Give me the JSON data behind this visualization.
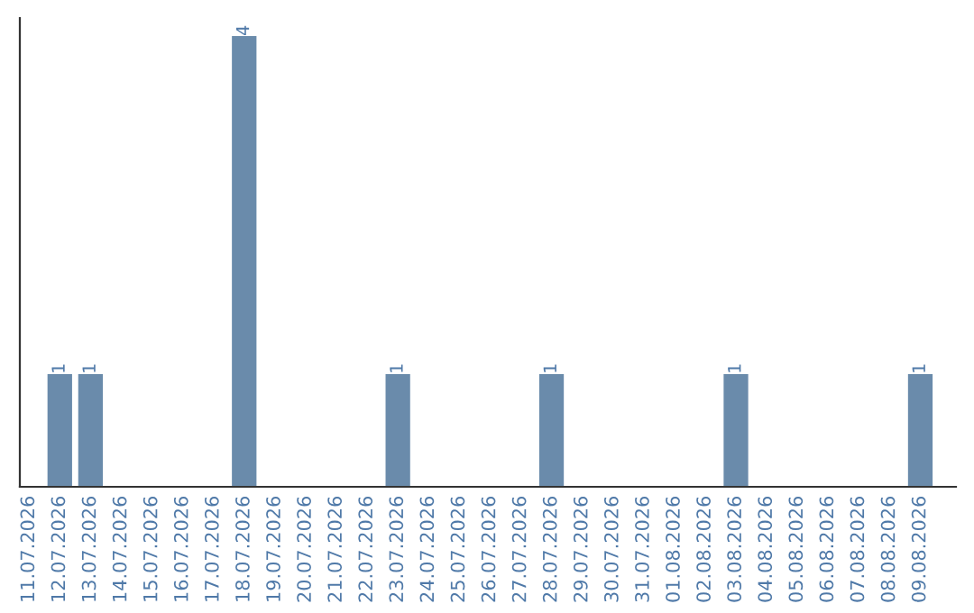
{
  "chart_data": {
    "type": "bar",
    "categories": [
      "11.07.2026",
      "12.07.2026",
      "13.07.2026",
      "14.07.2026",
      "15.07.2026",
      "16.07.2026",
      "17.07.2026",
      "18.07.2026",
      "19.07.2026",
      "20.07.2026",
      "21.07.2026",
      "22.07.2026",
      "23.07.2026",
      "24.07.2026",
      "25.07.2026",
      "26.07.2026",
      "27.07.2026",
      "28.07.2026",
      "29.07.2026",
      "30.07.2026",
      "31.07.2026",
      "01.08.2026",
      "02.08.2026",
      "03.08.2026",
      "04.08.2026",
      "05.08.2026",
      "06.08.2026",
      "07.08.2026",
      "08.08.2026",
      "09.08.2026"
    ],
    "values": [
      0,
      1,
      1,
      0,
      0,
      0,
      0,
      4,
      0,
      0,
      0,
      0,
      1,
      0,
      0,
      0,
      0,
      1,
      0,
      0,
      0,
      0,
      0,
      1,
      0,
      0,
      0,
      0,
      0,
      1
    ],
    "color": "#6a8bab",
    "value_labels": [
      null,
      "1",
      "1",
      null,
      null,
      null,
      null,
      "4",
      null,
      null,
      null,
      null,
      "1",
      null,
      null,
      null,
      null,
      "1",
      null,
      null,
      null,
      null,
      null,
      "1",
      null,
      null,
      null,
      null,
      null,
      "1"
    ],
    "tick_labels": "x",
    "grid": false,
    "legend": false
  }
}
